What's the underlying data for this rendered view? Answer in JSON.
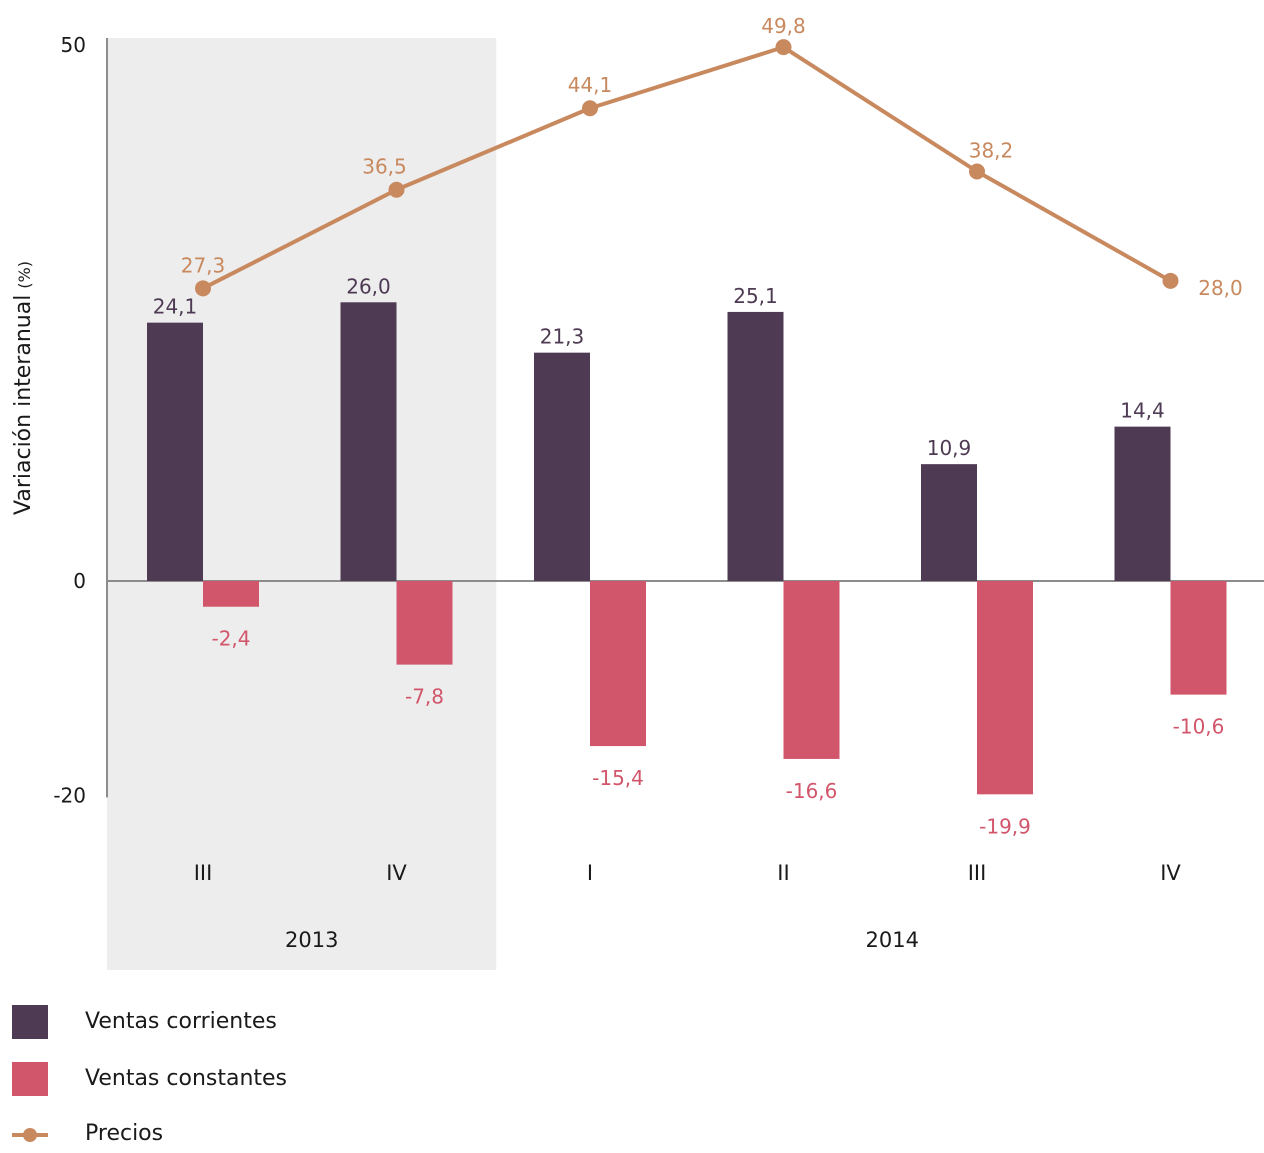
{
  "chart_data": {
    "type": "bar",
    "ylabel": "Variación interanual",
    "ylabel_unit": "(%)",
    "ylim": [
      -20,
      50
    ],
    "yticks": [
      "50",
      "0",
      "-20"
    ],
    "categories": [
      "III",
      "IV",
      "I",
      "II",
      "III",
      "IV"
    ],
    "groups": [
      {
        "label": "2013",
        "categories": [
          0,
          1
        ],
        "shaded": true
      },
      {
        "label": "2014",
        "categories": [
          2,
          3,
          4,
          5
        ],
        "shaded": false
      }
    ],
    "series": [
      {
        "name": "Ventas corrientes",
        "type": "bar",
        "color": "#4e3b53",
        "values": [
          24.1,
          26.0,
          21.3,
          25.1,
          10.9,
          14.4
        ],
        "labels": [
          "24,1",
          "26,0",
          "21,3",
          "25,1",
          "10,9",
          "14,4"
        ]
      },
      {
        "name": "Ventas constantes",
        "type": "bar",
        "color": "#d2566b",
        "values": [
          -2.4,
          -7.8,
          -15.4,
          -16.6,
          -19.9,
          -10.6
        ],
        "labels": [
          "-2,4",
          "-7,8",
          "-15,4",
          "-16,6",
          "-19,9",
          "-10,6"
        ]
      },
      {
        "name": "Precios",
        "type": "line",
        "color": "#c8895f",
        "values": [
          27.3,
          36.5,
          44.1,
          49.8,
          38.2,
          28.0
        ],
        "labels": [
          "27,3",
          "36,5",
          "44,1",
          "49,8",
          "38,2",
          "28,0"
        ]
      }
    ],
    "legend_position": "bottom-left",
    "colors": {
      "shade": "#ededed",
      "axis": "#8c8c8c"
    }
  }
}
